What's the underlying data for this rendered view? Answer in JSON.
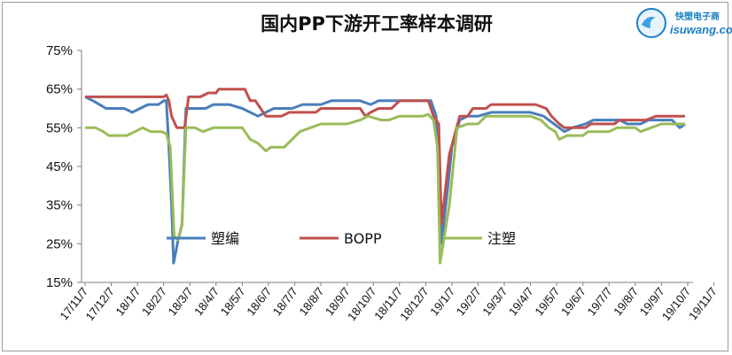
{
  "chart_data": {
    "type": "line",
    "title": "国内PP下游开工率样本调研",
    "ylabels": [
      "75%",
      "65%",
      "55%",
      "45%",
      "35%",
      "25%",
      "15%"
    ],
    "ylim": [
      15,
      75
    ],
    "x_tick_labels": [
      "17/11/7",
      "17/12/7",
      "18/1/7",
      "18/2/7",
      "18/3/7",
      "18/4/7",
      "18/5/7",
      "18/6/7",
      "18/7/7",
      "18/8/7",
      "18/9/7",
      "18/10/7",
      "18/11/7",
      "18/12/7",
      "19/1/7",
      "19/2/7",
      "19/3/7",
      "19/4/7",
      "19/5/7",
      "19/6/7",
      "19/7/7",
      "19/8/7",
      "19/9/7",
      "19/10/7",
      "19/11/7"
    ],
    "series": [
      {
        "name": "塑编",
        "color": "#4a7ebb",
        "points": [
          [
            0,
            63
          ],
          [
            0.3,
            62
          ],
          [
            0.55,
            61
          ],
          [
            0.8,
            60
          ],
          [
            1.5,
            60
          ],
          [
            1.8,
            59
          ],
          [
            2.1,
            60
          ],
          [
            2.4,
            61
          ],
          [
            2.8,
            61
          ],
          [
            3.0,
            62
          ],
          [
            3.1,
            62
          ],
          [
            3.2,
            50
          ],
          [
            3.3,
            35
          ],
          [
            3.38,
            20
          ],
          [
            3.55,
            26
          ],
          [
            3.7,
            30
          ],
          [
            3.85,
            60
          ],
          [
            4.2,
            60
          ],
          [
            4.6,
            60
          ],
          [
            4.9,
            61
          ],
          [
            5.5,
            61
          ],
          [
            6.0,
            60
          ],
          [
            6.3,
            59
          ],
          [
            6.6,
            58
          ],
          [
            6.9,
            59
          ],
          [
            7.2,
            60
          ],
          [
            7.9,
            60
          ],
          [
            8.3,
            61
          ],
          [
            9.0,
            61
          ],
          [
            9.4,
            62
          ],
          [
            10.0,
            62
          ],
          [
            10.5,
            62
          ],
          [
            10.9,
            61
          ],
          [
            11.2,
            62
          ],
          [
            12.5,
            62
          ],
          [
            13.0,
            62
          ],
          [
            13.2,
            62
          ],
          [
            13.4,
            58
          ],
          [
            13.6,
            25
          ],
          [
            13.85,
            40
          ],
          [
            14.0,
            50
          ],
          [
            14.3,
            57
          ],
          [
            14.6,
            58
          ],
          [
            15.0,
            58
          ],
          [
            15.5,
            59
          ],
          [
            17.0,
            59
          ],
          [
            17.5,
            58
          ],
          [
            17.9,
            56
          ],
          [
            18.3,
            54
          ],
          [
            18.6,
            55
          ],
          [
            19.1,
            56
          ],
          [
            19.4,
            57
          ],
          [
            20.4,
            57
          ],
          [
            20.7,
            56
          ],
          [
            21.2,
            56
          ],
          [
            21.5,
            57
          ],
          [
            22.4,
            57
          ],
          [
            22.7,
            55
          ],
          [
            22.9,
            56
          ]
        ]
      },
      {
        "name": "BOPP",
        "color": "#c0504d",
        "points": [
          [
            0,
            63
          ],
          [
            1.0,
            63
          ],
          [
            2.0,
            63
          ],
          [
            3.0,
            63
          ],
          [
            3.1,
            63.5
          ],
          [
            3.2,
            62
          ],
          [
            3.3,
            58
          ],
          [
            3.5,
            55
          ],
          [
            3.8,
            55
          ],
          [
            3.95,
            63
          ],
          [
            4.4,
            63
          ],
          [
            4.7,
            64
          ],
          [
            5.0,
            64
          ],
          [
            5.1,
            65
          ],
          [
            6.1,
            65
          ],
          [
            6.3,
            62
          ],
          [
            6.5,
            62
          ],
          [
            6.9,
            58
          ],
          [
            7.5,
            58
          ],
          [
            7.8,
            59
          ],
          [
            8.8,
            59
          ],
          [
            9.0,
            60
          ],
          [
            10.0,
            60
          ],
          [
            10.5,
            60
          ],
          [
            10.7,
            58
          ],
          [
            10.9,
            59
          ],
          [
            11.2,
            60
          ],
          [
            11.7,
            60
          ],
          [
            12.0,
            62
          ],
          [
            13.1,
            62
          ],
          [
            13.3,
            58
          ],
          [
            13.5,
            56
          ],
          [
            13.6,
            30
          ],
          [
            13.9,
            48
          ],
          [
            14.3,
            58
          ],
          [
            14.6,
            58
          ],
          [
            14.8,
            60
          ],
          [
            15.3,
            60
          ],
          [
            15.5,
            61
          ],
          [
            17.2,
            61
          ],
          [
            17.6,
            60
          ],
          [
            17.8,
            58
          ],
          [
            18.1,
            56
          ],
          [
            18.3,
            55
          ],
          [
            19.1,
            55
          ],
          [
            19.3,
            56
          ],
          [
            20.2,
            56
          ],
          [
            20.4,
            57
          ],
          [
            21.4,
            57
          ],
          [
            21.8,
            58
          ],
          [
            22.9,
            58
          ]
        ]
      },
      {
        "name": "注塑",
        "color": "#9bbb59",
        "points": [
          [
            0,
            55
          ],
          [
            0.4,
            55
          ],
          [
            0.7,
            54
          ],
          [
            0.9,
            53
          ],
          [
            1.6,
            53
          ],
          [
            1.9,
            54
          ],
          [
            2.2,
            55
          ],
          [
            2.5,
            54
          ],
          [
            2.9,
            54
          ],
          [
            3.1,
            53.5
          ],
          [
            3.25,
            50
          ],
          [
            3.4,
            27
          ],
          [
            3.55,
            26
          ],
          [
            3.7,
            30
          ],
          [
            3.85,
            55
          ],
          [
            4.2,
            55
          ],
          [
            4.5,
            54
          ],
          [
            4.9,
            55
          ],
          [
            5.6,
            55
          ],
          [
            6.0,
            55
          ],
          [
            6.3,
            52
          ],
          [
            6.6,
            51
          ],
          [
            6.9,
            49
          ],
          [
            7.1,
            50
          ],
          [
            7.6,
            50
          ],
          [
            7.9,
            52
          ],
          [
            8.2,
            54
          ],
          [
            8.6,
            55
          ],
          [
            9.0,
            56
          ],
          [
            10.0,
            56
          ],
          [
            10.5,
            57
          ],
          [
            10.8,
            58
          ],
          [
            11.3,
            57
          ],
          [
            11.6,
            57
          ],
          [
            12.0,
            58
          ],
          [
            12.6,
            58
          ],
          [
            12.9,
            58
          ],
          [
            13.1,
            58.5
          ],
          [
            13.3,
            57
          ],
          [
            13.45,
            50
          ],
          [
            13.55,
            20
          ],
          [
            13.9,
            35
          ],
          [
            14.2,
            55
          ],
          [
            14.6,
            56
          ],
          [
            15.0,
            56
          ],
          [
            15.3,
            58
          ],
          [
            17.0,
            58
          ],
          [
            17.4,
            57
          ],
          [
            17.7,
            55
          ],
          [
            17.95,
            54
          ],
          [
            18.1,
            52
          ],
          [
            18.4,
            53
          ],
          [
            19.0,
            53
          ],
          [
            19.2,
            54
          ],
          [
            20.0,
            54
          ],
          [
            20.3,
            55
          ],
          [
            21.0,
            55
          ],
          [
            21.2,
            54
          ],
          [
            21.6,
            55
          ],
          [
            22.0,
            56
          ],
          [
            22.9,
            56
          ]
        ]
      }
    ],
    "legend": [
      {
        "name": "塑编"
      },
      {
        "name": "BOPP"
      },
      {
        "name": "注塑"
      }
    ]
  },
  "brand": {
    "line1": "快塑电子商",
    "line2": "isuwang.co"
  }
}
